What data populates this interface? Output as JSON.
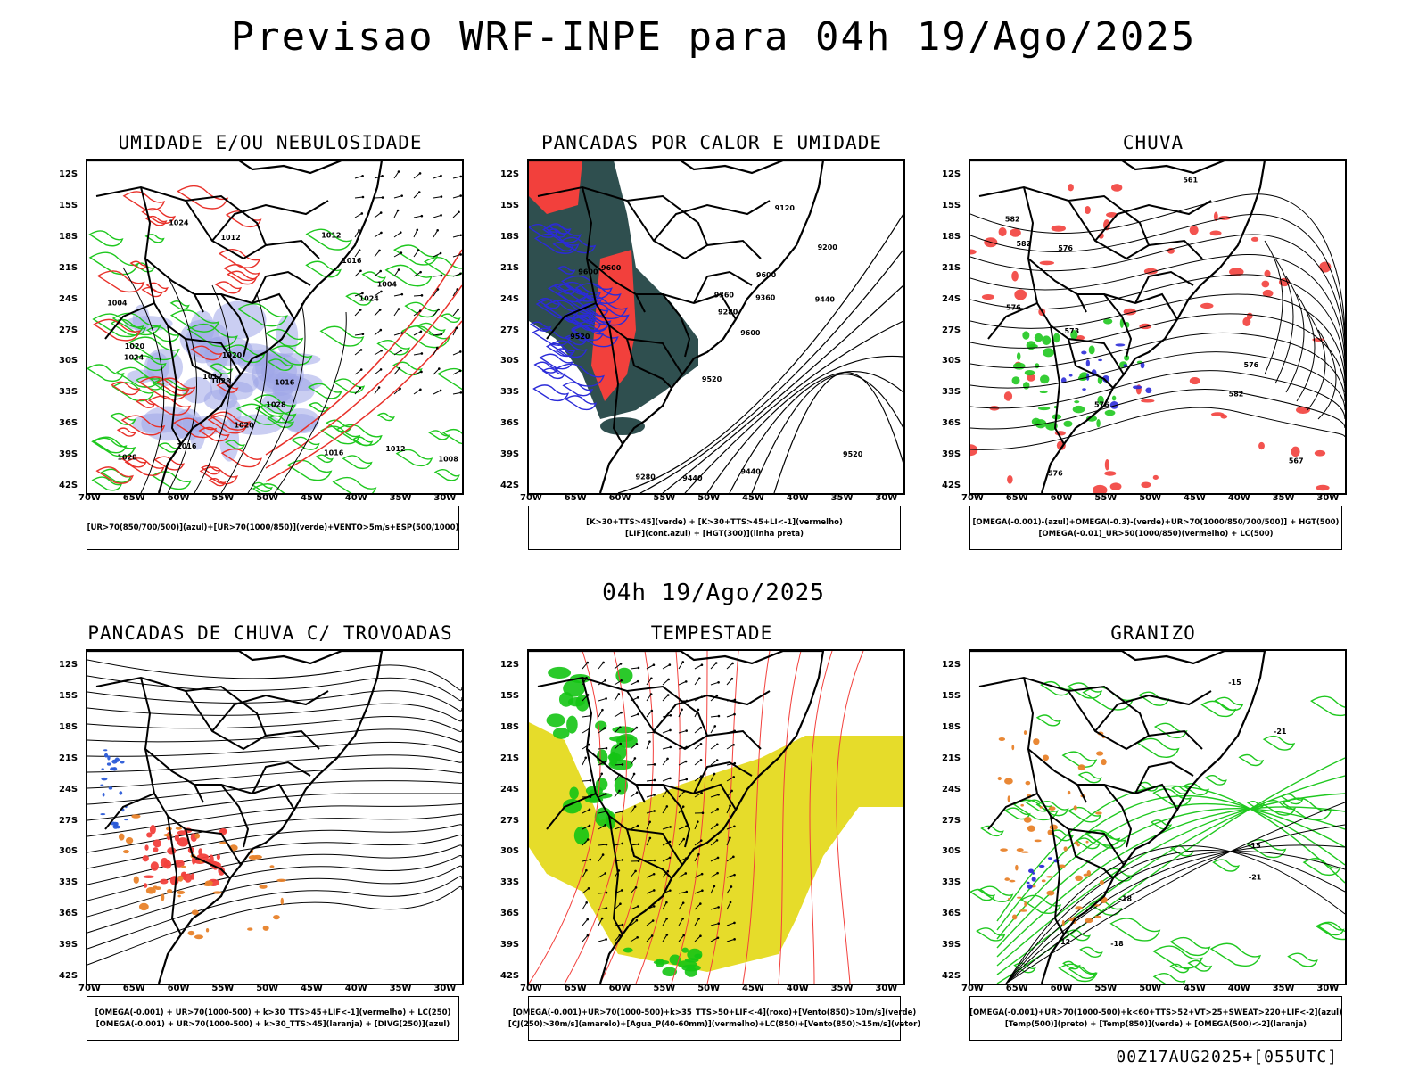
{
  "header": {
    "title": "Previsao WRF-INPE  para 04h 19/Ago/2025",
    "mid_title": "04h 19/Ago/2025",
    "stamp": "00Z17AUG2025+[055UTC]"
  },
  "axes": {
    "lat_labels": [
      "12S",
      "15S",
      "18S",
      "21S",
      "24S",
      "27S",
      "30S",
      "33S",
      "36S",
      "39S",
      "42S"
    ],
    "lon_labels": [
      "70W",
      "65W",
      "60W",
      "55W",
      "50W",
      "45W",
      "40W",
      "35W",
      "30W"
    ]
  },
  "panels": [
    {
      "title": "UMIDADE E/OU NEBULOSIDADE",
      "legend": [
        "[UR>70(850/700/500)](azul)+[UR>70(1000/850)](verde)+VENTO>5m/s+ESP(500/1000)"
      ],
      "labels": [
        "1020",
        "1012",
        "1016",
        "1012",
        "1008",
        "1004",
        "1016",
        "1012",
        "1024",
        "1020",
        "1004",
        "1016",
        "1012",
        "1016",
        "1020",
        "1024",
        "1028",
        "1028",
        "1024",
        "1028"
      ],
      "colors": {
        "humid_high": "#9fa6e8",
        "humid_low": "#1fc81f",
        "thickness": "#e8312a",
        "isobar": "#000000"
      }
    },
    {
      "title": "PANCADAS POR CALOR E UMIDADE",
      "legend": [
        "[K>30+TTS>45](verde) + [K>30+TTS>45+LI<-1](vermelho)",
        "[LIF](cont.azul) + [HGT(300)](linha preta)"
      ],
      "labels": [
        "9600",
        "9520",
        "9600",
        "9600",
        "9600",
        "9440",
        "9520",
        "9520",
        "9360",
        "9280",
        "9440",
        "9440",
        "9360",
        "9280",
        "9200",
        "9120"
      ],
      "colors": {
        "green": "#2f4f4f",
        "red": "#f2403c",
        "lif": "#2b2bd8",
        "hgt": "#000000"
      }
    },
    {
      "title": "CHUVA",
      "legend": [
        "[OMEGA(-0.001)-(azul)+OMEGA(-0.3)-(verde)+UR>70(1000/850/700/500)] + HGT(500)",
        "[OMEGA(-0.01)_UR>50(1000/850)(vermelho) + LC(500)"
      ],
      "labels": [
        "582",
        "582",
        "582",
        "576",
        "576",
        "576",
        "573",
        "576",
        "576",
        "567",
        "561"
      ],
      "colors": {
        "red": "#f2403c",
        "green": "#1fc81f",
        "blue": "#2b2bd8",
        "line": "#000000"
      }
    },
    {
      "title": "PANCADAS DE CHUVA C/ TROVOADAS",
      "legend": [
        "[OMEGA(-0.001) + UR>70(1000-500) + k>30_TTS>45+LIF<-1](vermelho) + LC(250)",
        "[OMEGA(-0.001) + UR>70(1000-500) + k>30_TTS>45](laranja) + [DIVG(250)](azul)"
      ],
      "labels": [],
      "colors": {
        "red": "#f2403c",
        "orange": "#e8822a",
        "blue": "#2b5bd8",
        "line": "#000000"
      }
    },
    {
      "title": "TEMPESTADE",
      "legend": [
        "[OMEGA(-0.001)+UR>70(1000-500)+k>35_TTS>50+LIF<-4](roxo)+[Vento(850)>10m/s](verde)",
        "[CJ(250)>30m/s](amarelo)+[Agua_P(40-60mm)](vermelho)+LC(850)+[Vento(850)>15m/s](vetor)"
      ],
      "labels": [],
      "colors": {
        "yellow": "#e6dc2a",
        "green": "#14c414",
        "red": "#f2403c",
        "vector": "#000000"
      }
    },
    {
      "title": "GRANIZO",
      "legend": [
        "[OMEGA(-0.001)+UR>70(1000-500)+k<60+TTS>52+VT>25+SWEAT>220+LIF<-2](azul)",
        "[Temp(500)](preto) + [Temp(850)](verde) + [OMEGA(500)<-2](laranja)"
      ],
      "labels": [
        "-12",
        "-15",
        "-15",
        "-18",
        "-18",
        "-21",
        "-21"
      ],
      "colors": {
        "green": "#1fc81f",
        "orange": "#e8822a",
        "blue": "#2b2bd8",
        "line": "#000000"
      }
    }
  ]
}
